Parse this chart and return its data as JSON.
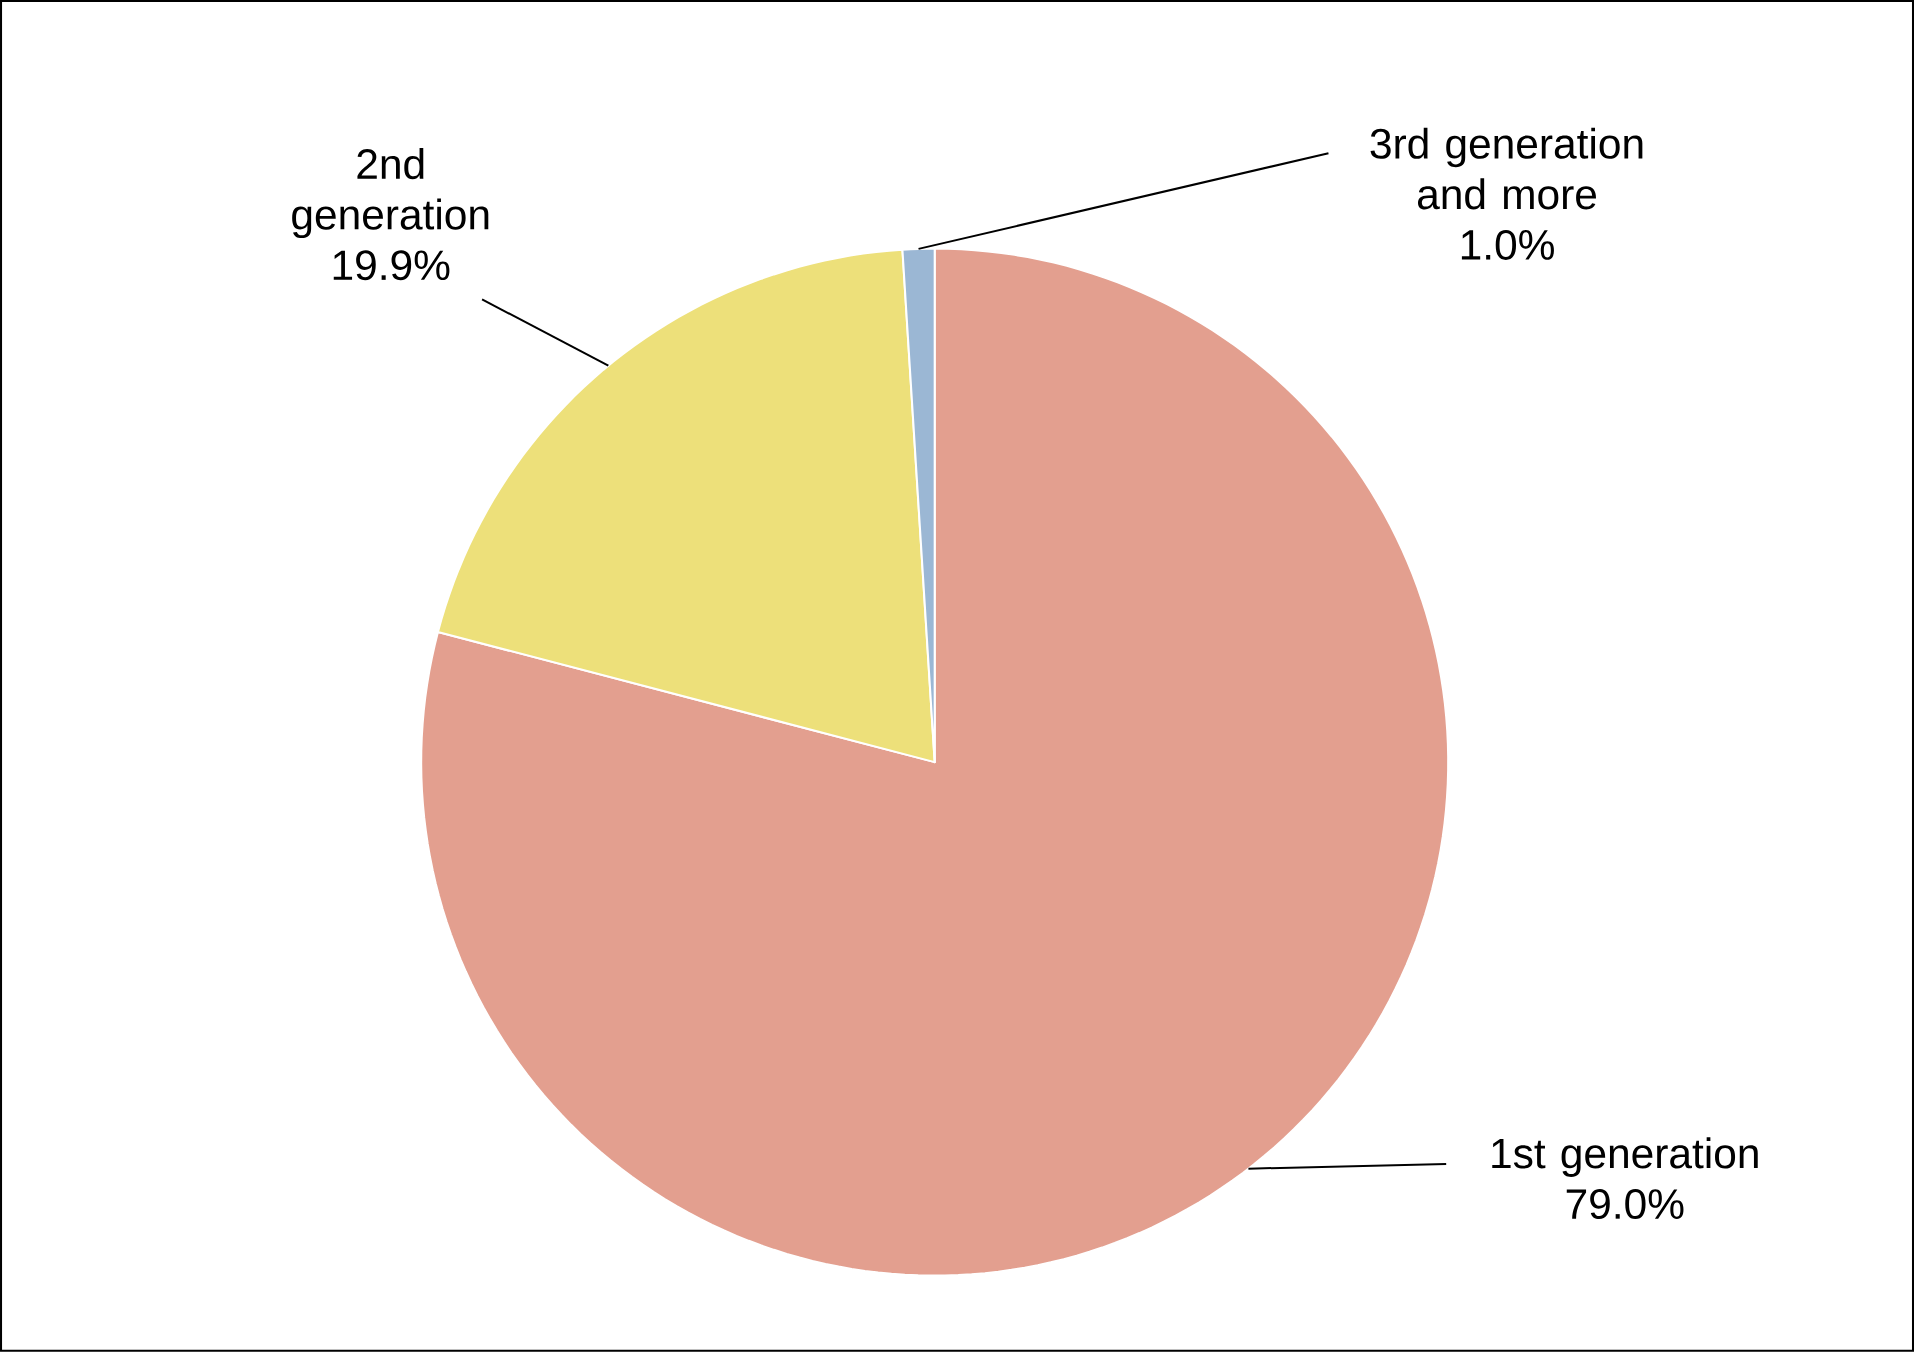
{
  "chart_data": {
    "type": "pie",
    "categories": [
      "1st generation",
      "2nd generation",
      "3rd generation and more"
    ],
    "values": [
      79.0,
      19.9,
      1.0
    ],
    "value_labels": [
      "79.0%",
      "19.9%",
      "1.0%"
    ],
    "colors": [
      "#e39f8f",
      "#ede07a",
      "#9bb7d4"
    ]
  }
}
